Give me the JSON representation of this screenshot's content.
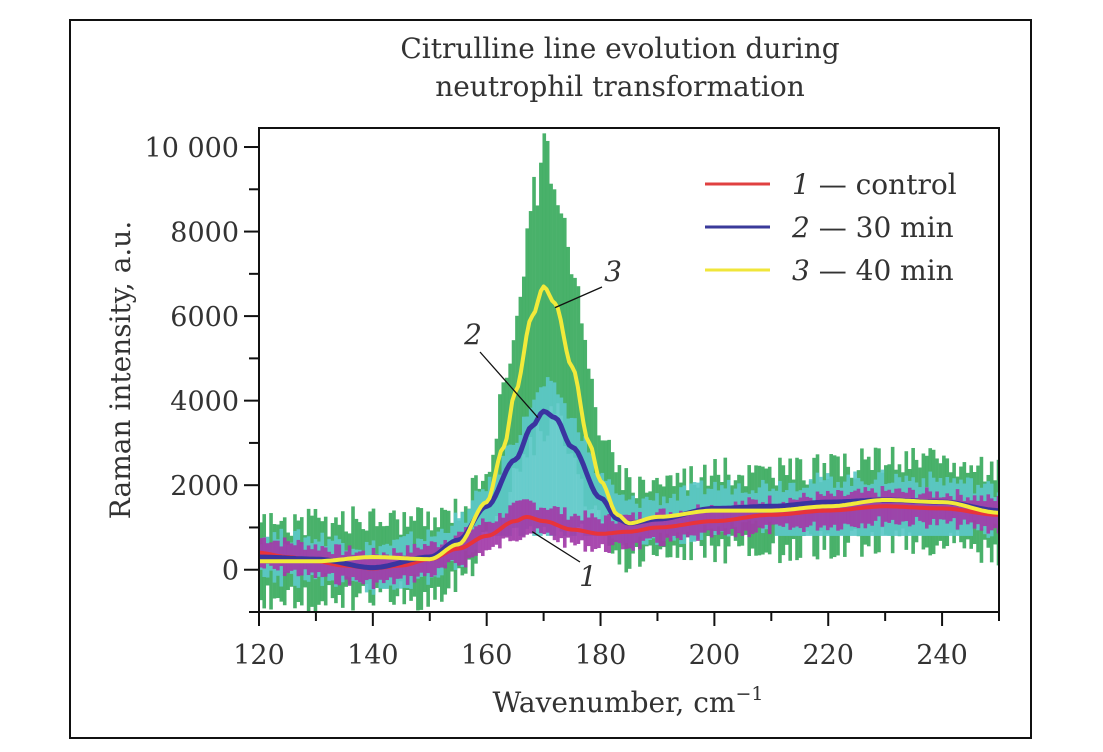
{
  "chart_data": {
    "type": "line",
    "title": "Citrulline line evolution during neutrophil transformation",
    "title_lines": [
      "Citrulline line evolution during",
      "neutrophil transformation"
    ],
    "xlabel": "Wavenumber, cm",
    "xlabel_sup": "−1",
    "ylabel": "Raman intensity, a.u.",
    "xlim": [
      120,
      250
    ],
    "ylim": [
      -1000,
      10450
    ],
    "x_ticks": [
      120,
      140,
      160,
      180,
      200,
      220,
      240
    ],
    "x_tick_labels": [
      "120",
      "140",
      "160",
      "180",
      "200",
      "220",
      "240"
    ],
    "x_minor_ticks": [
      130,
      150,
      170,
      190,
      210,
      230,
      250
    ],
    "y_ticks": [
      0,
      2000,
      4000,
      6000,
      8000,
      10000
    ],
    "y_tick_labels": [
      "0",
      "2000",
      "4000",
      "6000",
      "8000",
      "10 000"
    ],
    "y_minor_ticks": [
      -1000,
      1000,
      3000,
      5000,
      7000,
      9000
    ],
    "grid": false,
    "legend": {
      "position": "top-right",
      "entries": [
        {
          "num": "1",
          "text": "— control",
          "color": "#e04040"
        },
        {
          "num": "2",
          "text": "— 30 min",
          "color": "#3a3a9a"
        },
        {
          "num": "3",
          "text": "— 40 min",
          "color": "#f0e63a"
        }
      ]
    },
    "series": [
      {
        "name": "1 — control",
        "label": "1",
        "color": "#e8333a",
        "band_color": "#a23aa8",
        "band_halfwidth": 350,
        "x": [
          120,
          125,
          130,
          135,
          140,
          145,
          150,
          155,
          160,
          165,
          167,
          170,
          175,
          180,
          185,
          190,
          200,
          210,
          220,
          230,
          240,
          250
        ],
        "values": [
          400,
          300,
          200,
          100,
          30,
          100,
          250,
          500,
          800,
          1150,
          1250,
          1150,
          950,
          850,
          900,
          1000,
          1150,
          1300,
          1400,
          1500,
          1450,
          1300
        ]
      },
      {
        "name": "2 — 30 min",
        "label": "2",
        "color": "#3a34a0",
        "band_color": "#5cc8c8",
        "band_halfwidth": 500,
        "x": [
          120,
          130,
          140,
          150,
          155,
          160,
          165,
          168,
          170,
          172,
          175,
          180,
          183,
          185,
          190,
          200,
          210,
          220,
          230,
          240,
          250
        ],
        "values": [
          300,
          250,
          50,
          300,
          700,
          1500,
          2600,
          3400,
          3750,
          3600,
          2900,
          1700,
          1200,
          1100,
          1200,
          1450,
          1500,
          1600,
          1650,
          1600,
          1400
        ]
      },
      {
        "name": "3 — 40 min",
        "label": "3",
        "color": "#f2ea3a",
        "band_color": "#35a95a",
        "band_halfwidth": 900,
        "peak_envelope_max": 9550,
        "x": [
          120,
          130,
          140,
          150,
          155,
          160,
          163,
          165,
          168,
          170,
          172,
          175,
          178,
          180,
          183,
          185,
          190,
          200,
          210,
          220,
          230,
          240,
          250
        ],
        "values": [
          200,
          200,
          300,
          250,
          600,
          1600,
          2900,
          4200,
          6000,
          6700,
          6300,
          4800,
          3000,
          2100,
          1300,
          1100,
          1250,
          1400,
          1400,
          1500,
          1650,
          1600,
          1350
        ]
      }
    ],
    "annotations": [
      {
        "text": "1",
        "points_to": [
          168,
          900
        ]
      },
      {
        "text": "2",
        "points_to": [
          169,
          3600
        ]
      },
      {
        "text": "3",
        "points_to": [
          172,
          6200
        ]
      }
    ]
  }
}
